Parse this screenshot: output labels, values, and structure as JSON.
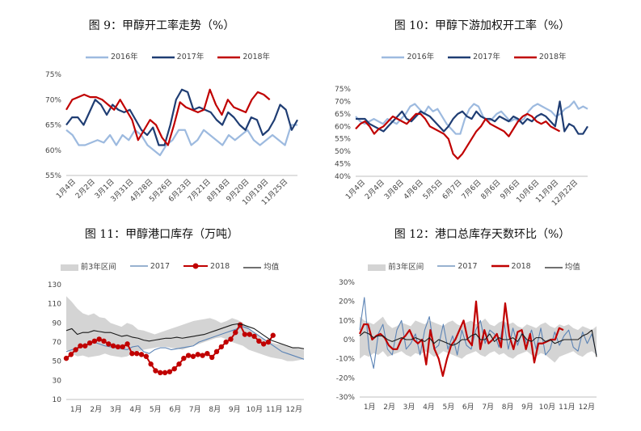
{
  "colors": {
    "c2016": "#9dbadf",
    "c2017": "#1f3d73",
    "c2018": "#c00000",
    "band": "#d4d4d4",
    "light2017": "#5b83b5",
    "avg": "#1a1a1a",
    "axis": "#bfbfbf"
  },
  "chart_data": [
    {
      "type": "line",
      "title": "图 9：甲醇开工率走势（%）",
      "y_unit": "%",
      "ylim": [
        55,
        75
      ],
      "yticks": [
        55,
        60,
        65,
        70,
        75
      ],
      "x_ticks": [
        "1月4日",
        "2月2日",
        "3月1日",
        "3月31日",
        "4月28日",
        "5月26日",
        "6月23日",
        "7月21日",
        "8月18日",
        "9月20日",
        "10月19日",
        "11月25日"
      ],
      "series": [
        {
          "name": "2016年",
          "values": [
            64,
            63,
            61,
            61,
            61.5,
            62,
            61.5,
            63,
            61,
            63,
            62,
            64,
            63,
            61,
            60,
            59,
            61,
            62,
            64,
            64,
            61,
            62,
            64,
            63,
            62,
            61,
            63,
            62,
            63,
            64,
            62,
            61,
            62,
            63,
            62,
            61,
            65,
            65
          ]
        },
        {
          "name": "2017年",
          "values": [
            65,
            66.5,
            66.5,
            65,
            67.5,
            70,
            69,
            67,
            69,
            68,
            67.5,
            68,
            66,
            64,
            63,
            64.5,
            61,
            61,
            65,
            70,
            72,
            71.5,
            68,
            68.5,
            68,
            67.5,
            66,
            65,
            67.5,
            66.5,
            65,
            64,
            66.5,
            66,
            63,
            64,
            66,
            69,
            68,
            64,
            66
          ]
        },
        {
          "name": "2018年",
          "values": [
            68,
            70,
            70.5,
            71,
            70.5,
            70.5,
            70,
            69,
            68,
            70,
            68,
            66,
            62,
            64,
            66,
            65,
            62.5,
            61,
            65,
            69.5,
            68.5,
            68,
            67.5,
            68,
            72,
            69,
            67,
            70,
            68.5,
            68,
            67.5,
            70,
            71.5,
            71,
            70
          ]
        }
      ]
    },
    {
      "type": "line",
      "title": "图 10：甲醇下游加权开工率（%）",
      "y_unit": "%",
      "ylim": [
        40,
        75
      ],
      "yticks": [
        40,
        45,
        50,
        55,
        60,
        65,
        70,
        75
      ],
      "x_ticks": [
        "1月4日",
        "2月4日",
        "3月8日",
        "4月6日",
        "5月5日",
        "6月7日",
        "7月6日",
        "8月6日",
        "9月6日",
        "10月6日",
        "11月9日",
        "12月22日"
      ],
      "series": [
        {
          "name": "2016年",
          "values": [
            64,
            62,
            61,
            62,
            63,
            62,
            61,
            63,
            62,
            61,
            63,
            65,
            68,
            69,
            67,
            65,
            68,
            66,
            67,
            64,
            61,
            59,
            57,
            57,
            63,
            67,
            69,
            68,
            64,
            62,
            63,
            65,
            66,
            64,
            62,
            63,
            62,
            63,
            66,
            68,
            69,
            68,
            67,
            66,
            64,
            65,
            67,
            68,
            70,
            67,
            68,
            67
          ]
        },
        {
          "name": "2017年",
          "values": [
            63,
            63,
            63,
            61,
            60,
            59,
            58,
            60,
            62,
            64,
            66,
            63,
            62,
            64,
            66,
            65,
            64,
            62,
            60,
            58,
            60,
            63,
            65,
            66,
            64,
            63,
            66,
            64,
            63,
            63,
            62,
            64,
            63,
            62,
            64,
            63,
            61,
            63,
            62,
            64,
            65,
            64,
            62,
            60,
            70,
            58,
            61,
            60,
            57,
            57,
            60
          ]
        },
        {
          "name": "2018年",
          "values": [
            59,
            61,
            62,
            60,
            57,
            59,
            60,
            62,
            64,
            63,
            62,
            61,
            63,
            65,
            65,
            63,
            60,
            59,
            58,
            57,
            55,
            49,
            47,
            49,
            52,
            55,
            58,
            60,
            63,
            61,
            60,
            59,
            58,
            56,
            59,
            62,
            64,
            65,
            64,
            62,
            61,
            62,
            60,
            59,
            58
          ]
        }
      ]
    },
    {
      "type": "line",
      "title": "图 11：甲醇港口库存（万吨）",
      "ylim": [
        10,
        130
      ],
      "yticks": [
        10,
        30,
        50,
        70,
        90,
        110,
        130
      ],
      "x_ticks": [
        "1月",
        "2月",
        "3月",
        "4月",
        "5月",
        "6月",
        "7月",
        "8月",
        "9月",
        "10月",
        "11月",
        "12月"
      ],
      "series": [
        {
          "name": "前3年区间",
          "upper": [
            118,
            112,
            105,
            100,
            98,
            100,
            96,
            95,
            90,
            88,
            86,
            90,
            88,
            83,
            82,
            80,
            78,
            80,
            82,
            84,
            86,
            88,
            90,
            92,
            93,
            94,
            95,
            93,
            90,
            92,
            95,
            93,
            90,
            85,
            80,
            75,
            72,
            70,
            68,
            68,
            66,
            64,
            63,
            62
          ],
          "lower": [
            62,
            58,
            55,
            56,
            54,
            55,
            56,
            58,
            56,
            55,
            54,
            55,
            58,
            60,
            62,
            63,
            64,
            65,
            65,
            64,
            63,
            62,
            64,
            66,
            68,
            70,
            72,
            74,
            75,
            73,
            70,
            68,
            66,
            62,
            60,
            58,
            56,
            54,
            53,
            52,
            50,
            50,
            51,
            52
          ]
        },
        {
          "name": "2017",
          "values": [
            60,
            62,
            64,
            66,
            68,
            70,
            68,
            66,
            65,
            64,
            63,
            62,
            65,
            66,
            60,
            58,
            62,
            64,
            64,
            62,
            63,
            64,
            65,
            66,
            70,
            72,
            74,
            76,
            78,
            80,
            82,
            84,
            86,
            84,
            80,
            76,
            72,
            68,
            64,
            60,
            58,
            56,
            54,
            52
          ]
        },
        {
          "name": "2018",
          "values": [
            53,
            57,
            62,
            66,
            66,
            69,
            71,
            73,
            71,
            68,
            66,
            65,
            65,
            68,
            58,
            58,
            57,
            55,
            47,
            40,
            38,
            38,
            39,
            42,
            47,
            53,
            56,
            55,
            57,
            56,
            58,
            54,
            60,
            65,
            70,
            73,
            80,
            88,
            78,
            78,
            76,
            71,
            68,
            70,
            77
          ]
        },
        {
          "name": "均值",
          "values": [
            82,
            84,
            78,
            80,
            80,
            82,
            81,
            80,
            80,
            78,
            76,
            77,
            75,
            74,
            72,
            71,
            72,
            73,
            74,
            74,
            75,
            74,
            75,
            76,
            77,
            78,
            80,
            82,
            84,
            86,
            88,
            89,
            88,
            86,
            84,
            80,
            76,
            72,
            70,
            68,
            66,
            64,
            64,
            63
          ]
        }
      ]
    },
    {
      "type": "line",
      "title": "图 12：港口总库存天数环比（%）",
      "y_unit": "%",
      "ylim": [
        -30,
        30
      ],
      "yticks": [
        -30,
        -20,
        -10,
        0,
        10,
        20,
        30
      ],
      "x_ticks": [
        "1月",
        "2月",
        "3月",
        "4月",
        "5月",
        "6月",
        "7月",
        "8月",
        "9月",
        "10月",
        "11月",
        "12月"
      ],
      "series": [
        {
          "name": "前3年区间",
          "upper": [
            12,
            10,
            9,
            8,
            10,
            12,
            8,
            6,
            7,
            9,
            8,
            7,
            10,
            9,
            8,
            10,
            9,
            8,
            7,
            9,
            10,
            8,
            7,
            9,
            10,
            8,
            9,
            11,
            8,
            7,
            9,
            10,
            8,
            9,
            7,
            6,
            8,
            7,
            6,
            8,
            9,
            7,
            6,
            8,
            7,
            8,
            6,
            5,
            7,
            6,
            5,
            7
          ],
          "lower": [
            -10,
            -8,
            -9,
            -7,
            -8,
            -6,
            -9,
            -8,
            -7,
            -6,
            -8,
            -9,
            -7,
            -8,
            -6,
            -7,
            -9,
            -8,
            -6,
            -7,
            -8,
            -9,
            -10,
            -8,
            -7,
            -6,
            -8,
            -9,
            -7,
            -6,
            -8,
            -7,
            -9,
            -10,
            -8,
            -7,
            -6,
            -8,
            -9,
            -7,
            -8,
            -10,
            -12,
            -9,
            -8,
            -7,
            -6,
            -8,
            -9,
            -7,
            -6,
            -8
          ]
        },
        {
          "name": "2017",
          "values": [
            5,
            22,
            -5,
            -15,
            3,
            8,
            -5,
            -8,
            5,
            10,
            -5,
            -2,
            3,
            -8,
            5,
            12,
            -5,
            -3,
            8,
            -5,
            2,
            -8,
            5,
            -3,
            -5,
            5,
            10,
            -2,
            5,
            3,
            -4,
            10,
            -5,
            6,
            -3,
            4,
            -2,
            5,
            -5,
            6,
            -8,
            -5,
            4,
            -3,
            2,
            5,
            -4,
            -6,
            4,
            -2,
            3,
            -8
          ]
        },
        {
          "name": "2018",
          "values": [
            3,
            8,
            8,
            0,
            2,
            3,
            1,
            -3,
            -5,
            -5,
            0,
            2,
            5,
            0,
            -2,
            0,
            -13,
            5,
            -5,
            -10,
            -19,
            -10,
            -3,
            0,
            5,
            10,
            0,
            -3,
            20,
            -5,
            5,
            -2,
            0,
            3,
            -4,
            19,
            2,
            -5,
            4,
            5,
            -5,
            3,
            -12,
            -2,
            -2,
            -1,
            0,
            0,
            6,
            5
          ]
        },
        {
          "name": "均值",
          "values": [
            2,
            4,
            3,
            1,
            2,
            2,
            0,
            -1,
            0,
            1,
            0,
            0,
            1,
            0,
            -1,
            1,
            -2,
            0,
            -1,
            -2,
            -3,
            -2,
            0,
            0,
            2,
            3,
            0,
            0,
            3,
            -1,
            1,
            0,
            0,
            1,
            -1,
            3,
            0,
            -1,
            1,
            1,
            -1,
            0,
            -2,
            -1,
            0,
            0,
            0,
            0,
            2,
            3,
            5,
            -9
          ]
        }
      ]
    }
  ]
}
